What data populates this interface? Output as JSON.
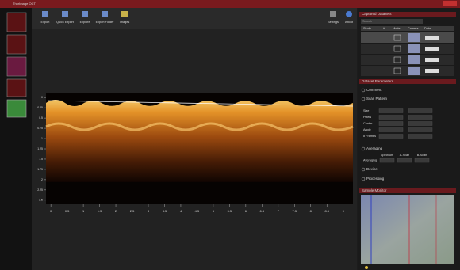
{
  "title_bar": "ThorImage OCT",
  "toolbar": {
    "left": [
      "Export",
      "Quick Export",
      "Explore",
      "Export Folder",
      "Images"
    ],
    "right": [
      "Settings",
      "About"
    ],
    "display_mode": "Physical"
  },
  "image_axes": {
    "xlim": [
      -0.15,
      9.3
    ],
    "xticks": [
      0,
      0.5,
      1,
      1.5,
      2,
      2.5,
      3,
      3.5,
      4,
      4.5,
      5,
      5.5,
      6,
      6.5,
      7,
      7.5,
      8,
      8.5,
      9
    ],
    "ylim": [
      -0.1,
      2.6
    ],
    "yticks": [
      0,
      0.25,
      0.5,
      0.75,
      1,
      1.25,
      1.5,
      1.75,
      2,
      2.25,
      2.5
    ]
  },
  "panels": {
    "captured": {
      "title": "Captured Datasets",
      "search": "Search",
      "columns": [
        "Study",
        "#",
        "Mode",
        "Camera",
        "Data"
      ]
    },
    "params": {
      "title": "Dataset Parameters",
      "comment": "Comment",
      "scan_pattern": "Scan Pattern",
      "fields": [
        "Size",
        "Pixels",
        "Center",
        "Angle",
        "# Frames"
      ],
      "averaging": "Averaging",
      "averaging_columns": [
        "Spectrum",
        "A-Scan",
        "B-Scan"
      ],
      "device": "Device",
      "processing": "Processing"
    },
    "monitor": {
      "title": "Sample Monitor"
    }
  }
}
